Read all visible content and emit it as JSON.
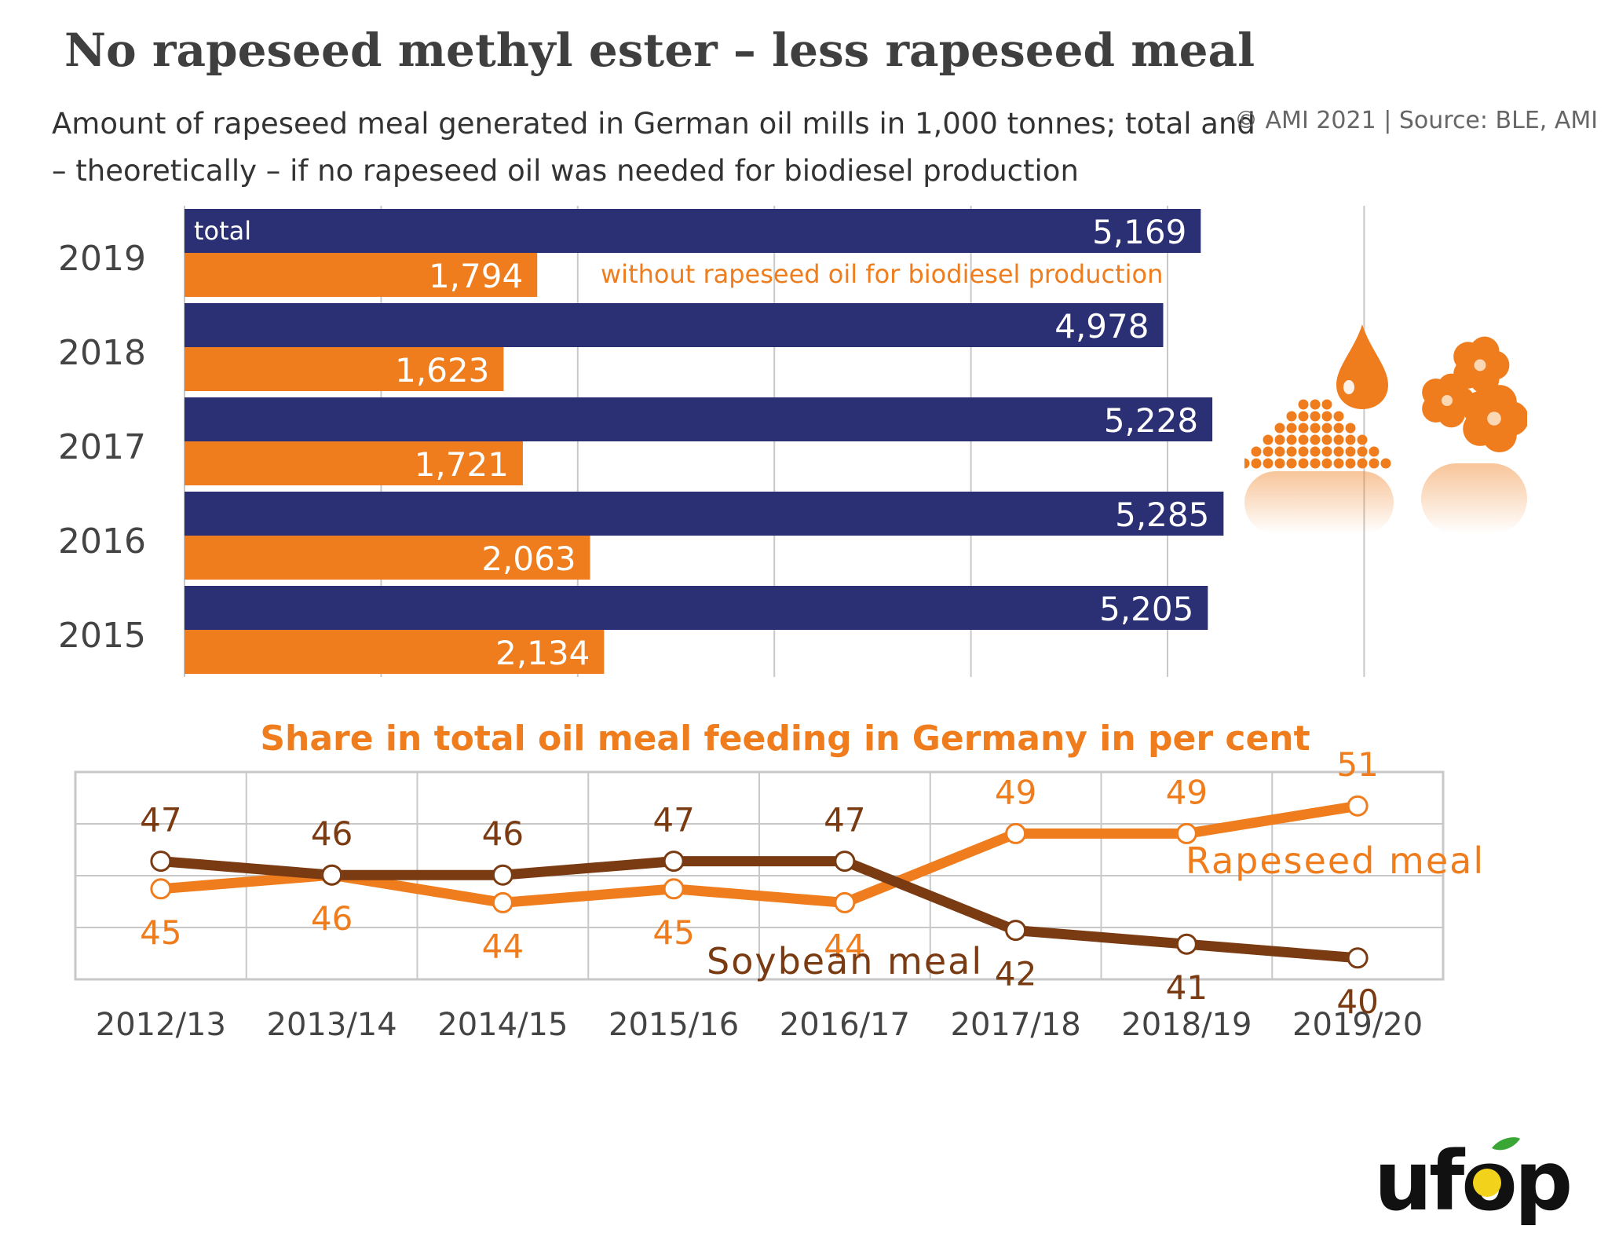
{
  "title": "No rapeseed methyl ester – less rapeseed meal",
  "subtitle": "Amount of rapeseed meal generated in German oil mills in 1,000 tonnes; total and – theoretically – if no rapeseed oil was needed for biodiesel production",
  "source": "© AMI 2021 | Source: BLE, AMI",
  "logo_text": "ufop",
  "colors": {
    "navy": "#2b2f73",
    "orange": "#ef7d1d",
    "brown": "#7a3b12",
    "grid": "#c8c8c8"
  },
  "chart_data": [
    {
      "type": "bar",
      "orientation": "horizontal",
      "categories": [
        "2019",
        "2018",
        "2017",
        "2016",
        "2015"
      ],
      "series": [
        {
          "name": "total",
          "values": [
            5169,
            4978,
            5228,
            5285,
            5205
          ],
          "labels": [
            "5,169",
            "4,978",
            "5,228",
            "5,285",
            "5,205"
          ]
        },
        {
          "name": "without rapeseed oil for biodiesel production",
          "values": [
            1794,
            1623,
            1721,
            2063,
            2134
          ],
          "labels": [
            "1,794",
            "1,623",
            "1,721",
            "2,063",
            "2,134"
          ]
        }
      ],
      "xlim": [
        0,
        6000
      ],
      "grid": true
    },
    {
      "type": "line",
      "title": "Share in total oil meal feeding in Germany in per cent",
      "categories": [
        "2012/13",
        "2013/14",
        "2014/15",
        "2015/16",
        "2016/17",
        "2017/18",
        "2018/19",
        "2019/20"
      ],
      "series": [
        {
          "name": "Rapeseed meal",
          "values": [
            45,
            46,
            44,
            45,
            44,
            49,
            49,
            51
          ]
        },
        {
          "name": "Soybean meal",
          "values": [
            47,
            46,
            46,
            47,
            47,
            42,
            41,
            40
          ]
        }
      ],
      "grid": true
    }
  ]
}
